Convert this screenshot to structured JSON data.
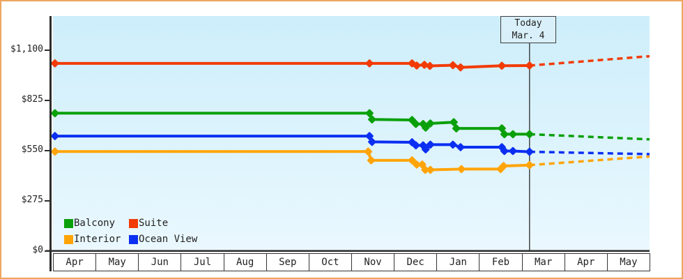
{
  "chart_data": {
    "type": "line",
    "title": "",
    "xlabel": "",
    "ylabel": "",
    "months": [
      "Apr",
      "May",
      "Jun",
      "Jul",
      "Aug",
      "Sep",
      "Oct",
      "Nov",
      "Dec",
      "Jan",
      "Feb",
      "Mar",
      "Apr",
      "May"
    ],
    "x_span_months": 14,
    "yticks": [
      {
        "value": 0,
        "label": "$0"
      },
      {
        "value": 275,
        "label": "$275"
      },
      {
        "value": 550,
        "label": "$550"
      },
      {
        "value": 825,
        "label": "$825"
      },
      {
        "value": 1100,
        "label": "$1,100"
      }
    ],
    "ylim": [
      0,
      1280
    ],
    "grid": false,
    "today": {
      "line1": "Today",
      "line2": "Mar. 4",
      "month_frac": 11.18
    },
    "series": [
      {
        "name": "Interior",
        "color": "#ffa408",
        "points": [
          [
            0.03,
            545
          ],
          [
            7.39,
            545
          ],
          [
            7.46,
            497
          ],
          [
            8.42,
            497
          ],
          [
            8.53,
            474
          ],
          [
            8.66,
            474
          ],
          [
            8.73,
            445
          ],
          [
            8.85,
            445
          ],
          [
            9.58,
            449
          ],
          [
            10.5,
            449
          ],
          [
            10.57,
            466
          ],
          [
            11.18,
            471
          ]
        ],
        "forecast": [
          [
            11.18,
            471
          ],
          [
            14,
            518
          ]
        ]
      },
      {
        "name": "Ocean View",
        "color": "#0b2ff2",
        "points": [
          [
            0.03,
            630
          ],
          [
            7.42,
            630
          ],
          [
            7.48,
            598
          ],
          [
            8.42,
            596
          ],
          [
            8.51,
            579
          ],
          [
            8.68,
            579
          ],
          [
            8.74,
            557
          ],
          [
            8.85,
            583
          ],
          [
            9.38,
            583
          ],
          [
            9.56,
            569
          ],
          [
            10.53,
            569
          ],
          [
            10.59,
            548
          ],
          [
            10.79,
            548
          ],
          [
            11.18,
            544
          ]
        ],
        "forecast": [
          [
            11.18,
            544
          ],
          [
            14,
            531
          ]
        ]
      },
      {
        "name": "Balcony",
        "color": "#0aa00a",
        "points": [
          [
            0.03,
            755
          ],
          [
            7.42,
            755
          ],
          [
            7.48,
            721
          ],
          [
            8.42,
            718
          ],
          [
            8.51,
            696
          ],
          [
            8.68,
            696
          ],
          [
            8.74,
            676
          ],
          [
            8.85,
            699
          ],
          [
            9.4,
            706
          ],
          [
            9.46,
            672
          ],
          [
            10.53,
            672
          ],
          [
            10.59,
            640
          ],
          [
            10.79,
            640
          ],
          [
            11.18,
            640
          ]
        ],
        "forecast": [
          [
            11.18,
            640
          ],
          [
            14,
            612
          ]
        ]
      },
      {
        "name": "Suite",
        "color": "#f23b05",
        "points": [
          [
            0.03,
            1028
          ],
          [
            7.42,
            1028
          ],
          [
            8.42,
            1028
          ],
          [
            8.53,
            1016
          ],
          [
            8.71,
            1020
          ],
          [
            8.84,
            1014
          ],
          [
            9.38,
            1018
          ],
          [
            9.56,
            1006
          ],
          [
            10.53,
            1015
          ],
          [
            11.18,
            1016
          ]
        ],
        "forecast": [
          [
            11.18,
            1016
          ],
          [
            14,
            1067
          ]
        ]
      }
    ],
    "legend": {
      "position": "bottom-left",
      "items": [
        {
          "label": "Balcony",
          "color": "#0aa00a"
        },
        {
          "label": "Suite",
          "color": "#f23b05"
        },
        {
          "label": "Interior",
          "color": "#ffa408"
        },
        {
          "label": "Ocean View",
          "color": "#0b2ff2"
        }
      ]
    }
  },
  "colors": {
    "page_border": "#eda75f",
    "plot_bg_top": "#cdeefb",
    "plot_bg_bottom": "#eaf8fe",
    "axis": "#2d2d2d",
    "today_line": "#444444",
    "today_box_bg": "#d9f0fa"
  }
}
